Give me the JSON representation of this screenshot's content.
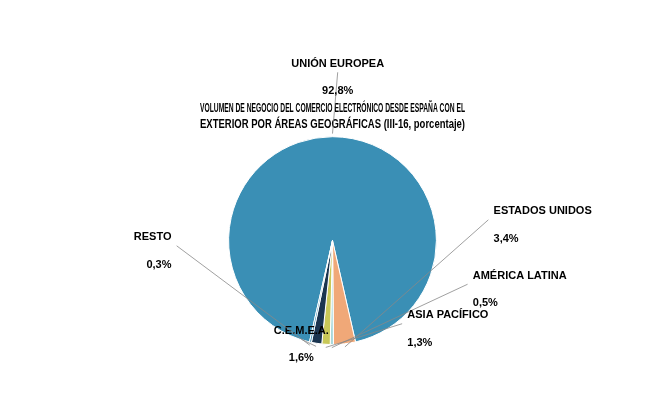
{
  "chart_data": {
    "type": "pie",
    "title": [
      "VOLUMEN DE NEGOCIO DEL COMERCIO ELECTRÓNICO DESDE ESPAÑA CON EL",
      "EXTERIOR POR ÁREAS GEOGRÁFICAS (III-16, porcentaje)"
    ],
    "categories": [
      "UNIÓN EUROPEA",
      "ESTADOS UNIDOS",
      "AMÉRICA LATINA",
      "ASIA PACÍFICO",
      "C.E.M.E.A.",
      "RESTO"
    ],
    "values": [
      92.8,
      3.4,
      0.5,
      1.3,
      1.6,
      0.3
    ],
    "value_labels": [
      "92,8%",
      "3,4%",
      "0,5%",
      "1,3%",
      "1,6%",
      "0,3%"
    ],
    "colors": [
      "#3a8fb5",
      "#f0a878",
      "#a8d8dc",
      "#c8c858",
      "#1a3550",
      "#3a8fb5"
    ],
    "data_labels": true
  }
}
